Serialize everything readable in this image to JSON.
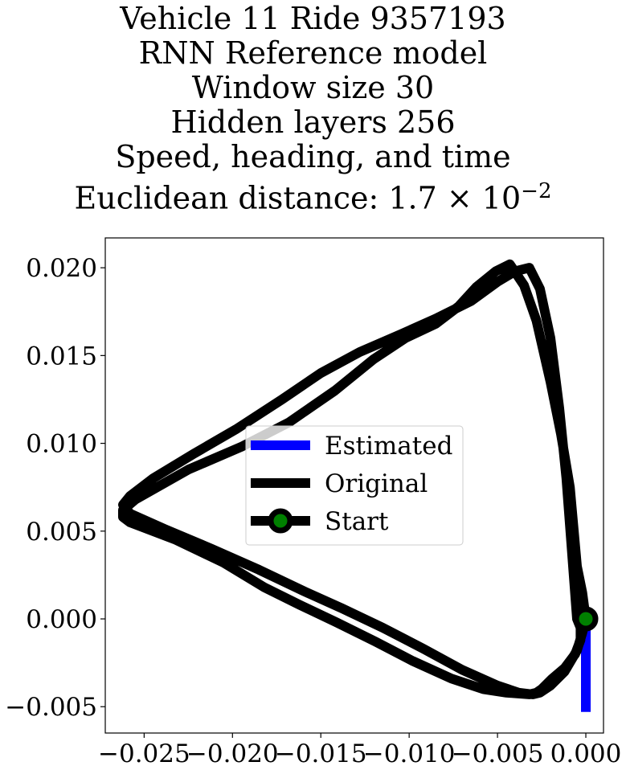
{
  "title_lines": [
    "Vehicle 11 Ride 9357193",
    "RNN Reference model",
    "Window size 30",
    "Hidden layers 256",
    "Speed, heading, and time"
  ],
  "title_last": {
    "text": "Euclidean distance: 1.7 × 10",
    "exponent": "−2"
  },
  "chart_data": {
    "type": "line",
    "xlim": [
      -0.0272,
      0.001
    ],
    "ylim": [
      -0.0065,
      0.0217
    ],
    "grid": false,
    "legend_position": "center",
    "xticks": [
      {
        "value": -0.025,
        "label": "−0.025"
      },
      {
        "value": -0.02,
        "label": "−0.020"
      },
      {
        "value": -0.015,
        "label": "−0.015"
      },
      {
        "value": -0.01,
        "label": "−0.010"
      },
      {
        "value": -0.005,
        "label": "−0.005"
      },
      {
        "value": 0.0,
        "label": "0.000"
      }
    ],
    "yticks": [
      {
        "value": 0.02,
        "label": "0.020"
      },
      {
        "value": 0.015,
        "label": "0.015"
      },
      {
        "value": 0.01,
        "label": "0.010"
      },
      {
        "value": 0.005,
        "label": "0.005"
      },
      {
        "value": 0.0,
        "label": "0.000"
      },
      {
        "value": -0.005,
        "label": "−0.005"
      }
    ],
    "series": [
      {
        "name": "Estimated",
        "color": "#0000ff",
        "x": [
          0.0,
          0.0,
          0.0
        ],
        "y": [
          0.0,
          -0.003,
          -0.0053
        ]
      },
      {
        "name": "Original",
        "color": "#000000",
        "x": [
          0.0,
          -0.0002,
          -0.0005,
          -0.0009,
          -0.0014,
          -0.002,
          -0.0028,
          -0.0035,
          -0.0043,
          -0.0051,
          -0.0062,
          -0.0072,
          -0.0085,
          -0.0102,
          -0.012,
          -0.0142,
          -0.0168,
          -0.0195,
          -0.0225,
          -0.0255,
          -0.0262,
          -0.0262,
          -0.0258,
          -0.0232,
          -0.0205,
          -0.0182,
          -0.0162,
          -0.0141,
          -0.0119,
          -0.0098,
          -0.0076,
          -0.0058,
          -0.0045,
          -0.0032,
          -0.0028,
          -0.0025,
          -0.0019,
          -0.0012,
          -0.0006,
          -0.0003,
          -0.0003,
          -0.0005,
          -0.0008,
          -0.0011,
          -0.0015,
          -0.002,
          -0.0026,
          -0.0032,
          -0.004,
          -0.005,
          -0.0065,
          -0.0085,
          -0.0105,
          -0.0128,
          -0.015,
          -0.0172,
          -0.0198,
          -0.0222,
          -0.0245,
          -0.0258,
          -0.0262,
          -0.0258,
          -0.0238,
          -0.0212,
          -0.0185,
          -0.016,
          -0.0138,
          -0.0115,
          -0.0092,
          -0.007,
          -0.005,
          -0.0038,
          -0.003,
          -0.0026,
          -0.002,
          -0.0012,
          -0.0005,
          -0.0002,
          0.0
        ],
        "y": [
          0.0,
          0.0015,
          0.003,
          0.0075,
          0.0105,
          0.0135,
          0.017,
          0.019,
          0.0202,
          0.0198,
          0.0189,
          0.0178,
          0.0168,
          0.016,
          0.0148,
          0.013,
          0.0112,
          0.0098,
          0.0085,
          0.0068,
          0.0062,
          0.0058,
          0.0055,
          0.0045,
          0.0032,
          0.0018,
          0.0008,
          -0.0002,
          -0.0013,
          -0.0024,
          -0.0034,
          -0.004,
          -0.0042,
          -0.0043,
          -0.0042,
          -0.004,
          -0.0034,
          -0.0028,
          -0.002,
          -0.0012,
          -0.0005,
          0.0,
          0.004,
          0.008,
          0.012,
          0.016,
          0.0188,
          0.02,
          0.0198,
          0.0192,
          0.0181,
          0.0171,
          0.0162,
          0.0152,
          0.014,
          0.0125,
          0.0108,
          0.0094,
          0.008,
          0.007,
          0.0065,
          0.006,
          0.0051,
          0.004,
          0.0028,
          0.0016,
          0.0006,
          -0.0005,
          -0.0017,
          -0.0029,
          -0.0038,
          -0.0042,
          -0.0043,
          -0.0042,
          -0.0038,
          -0.003,
          -0.0018,
          -0.0008,
          0.0
        ]
      }
    ],
    "start_point": {
      "name": "Start",
      "x": 0.0,
      "y": 0.0,
      "edge_color": "#000000",
      "face_color": "#008000"
    },
    "legend": [
      {
        "label": "Estimated",
        "color": "#0000ff",
        "style": "line"
      },
      {
        "label": "Original",
        "color": "#000000",
        "style": "line"
      },
      {
        "label": "Start",
        "color": "#000000",
        "face_color": "#008000",
        "style": "line-marker"
      }
    ]
  }
}
